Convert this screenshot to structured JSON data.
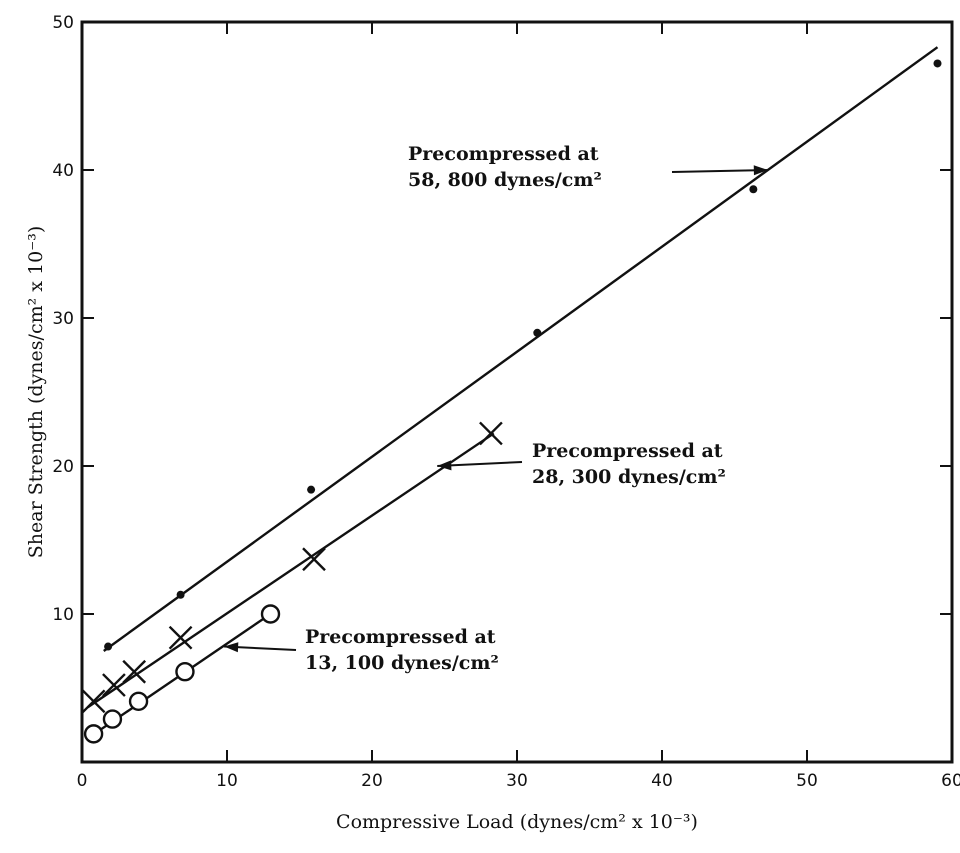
{
  "chart_data": {
    "type": "scatter",
    "title": "",
    "xlabel": "Compressive Load (dynes/cm² x 10⁻³)",
    "ylabel": "Shear Strength (dynes/cm² x 10⁻³)",
    "xlim": [
      0,
      60
    ],
    "ylim": [
      0,
      50
    ],
    "x_ticks": [
      "0",
      "10",
      "20",
      "30",
      "40",
      "50",
      "60"
    ],
    "y_ticks": [
      "10",
      "20",
      "30",
      "40",
      "50"
    ],
    "grid": false,
    "legend": "none",
    "series": [
      {
        "marker": "dot",
        "points": [
          [
            1.8,
            7.8
          ],
          [
            6.8,
            11.3
          ],
          [
            15.8,
            18.4
          ],
          [
            31.4,
            29.0
          ],
          [
            46.3,
            38.7
          ],
          [
            59.0,
            47.2
          ]
        ],
        "fit_line": [
          [
            1.5,
            7.5
          ],
          [
            59.0,
            48.3
          ]
        ],
        "annotation": {
          "lines": [
            "Precompressed at",
            "58, 800 dynes/cm²"
          ],
          "arrow_to": [
            47.3,
            40.0
          ]
        }
      },
      {
        "marker": "cross",
        "points": [
          [
            0.8,
            4.1
          ],
          [
            2.2,
            5.2
          ],
          [
            3.6,
            6.1
          ],
          [
            6.8,
            8.4
          ],
          [
            16.0,
            13.7
          ],
          [
            28.2,
            22.2
          ]
        ],
        "fit_line": [
          [
            0.4,
            3.7
          ],
          [
            28.4,
            22.2
          ]
        ],
        "annotation": {
          "lines": [
            "Precompressed at",
            "28, 300 dynes/cm²"
          ],
          "arrow_to": [
            24.5,
            20.0
          ]
        }
      },
      {
        "marker": "circle",
        "points": [
          [
            0.8,
            1.9
          ],
          [
            2.1,
            2.9
          ],
          [
            3.9,
            4.1
          ],
          [
            7.1,
            6.1
          ],
          [
            13.0,
            10.0
          ]
        ],
        "fit_line": [
          [
            0.4,
            1.6
          ],
          [
            13.0,
            10.0
          ]
        ],
        "annotation": {
          "lines": [
            "Precompressed at",
            "13, 100 dynes/cm²"
          ],
          "arrow_to": [
            9.8,
            7.8
          ]
        }
      }
    ]
  }
}
